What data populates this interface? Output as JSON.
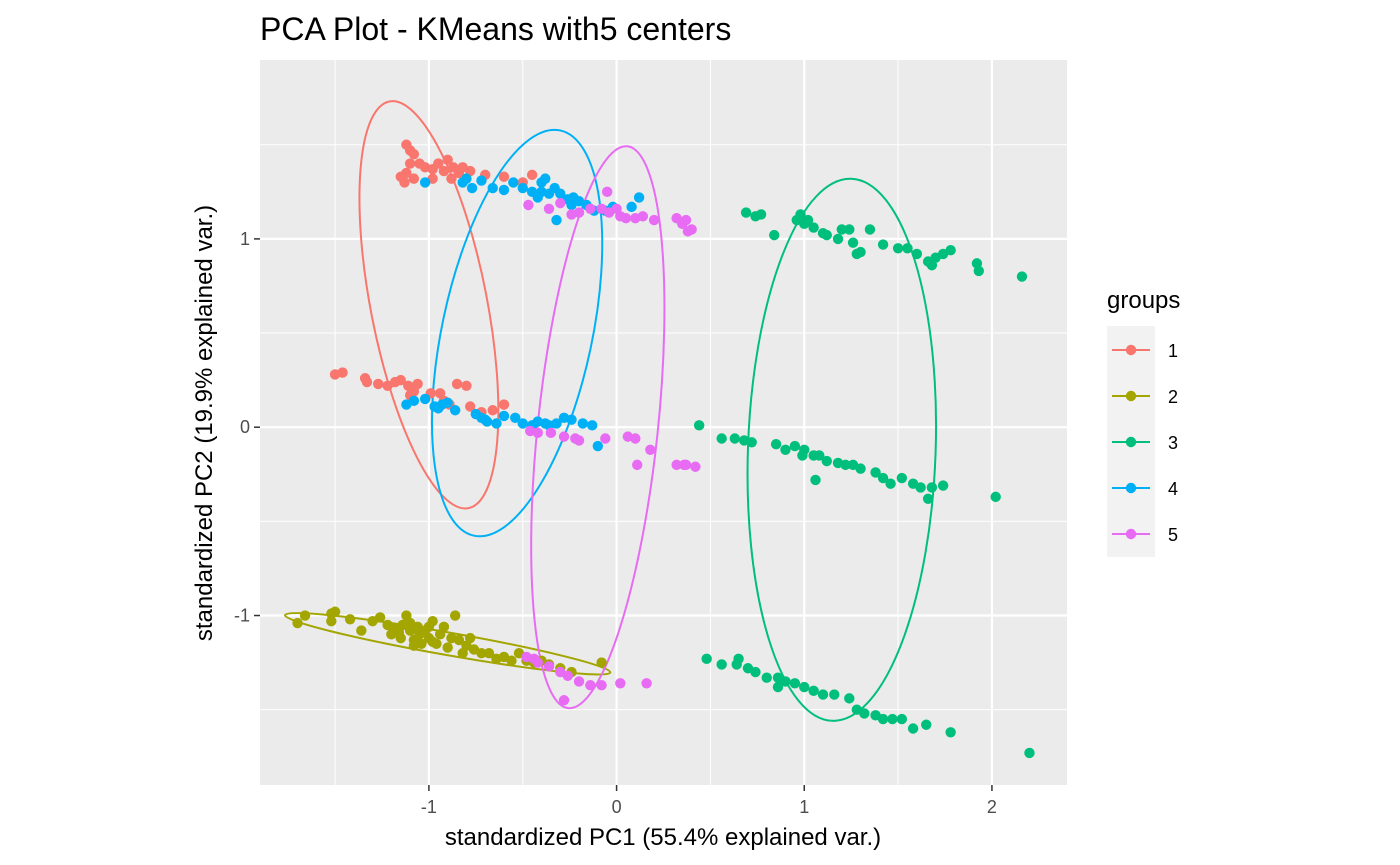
{
  "chart_data": {
    "type": "scatter",
    "title": "PCA Plot - KMeans with5 centers",
    "xlabel": "standardized PC1 (55.4% explained var.)",
    "ylabel": "standardized PC2 (19.9% explained var.)",
    "xlim": [
      -1.9,
      2.4
    ],
    "ylim": [
      -1.9,
      1.95
    ],
    "xticks": [
      -1,
      0,
      1,
      2
    ],
    "xtick_labels": [
      "-1",
      "0",
      "1",
      "2"
    ],
    "yticks": [
      -1,
      0,
      1
    ],
    "ytick_labels": [
      "-1",
      "0",
      "1"
    ],
    "grid": true,
    "legend": {
      "title": "groups",
      "position": "right"
    },
    "series": [
      {
        "name": "1",
        "color": "#F8766D",
        "ellipse": {
          "cx": -1.0,
          "cy": 0.65,
          "rx": 0.31,
          "ry": 1.1,
          "angle": -11
        },
        "points": [
          [
            -1.5,
            0.28
          ],
          [
            -1.46,
            0.29
          ],
          [
            -1.34,
            0.26
          ],
          [
            -1.33,
            0.24
          ],
          [
            -1.27,
            0.23
          ],
          [
            -1.22,
            0.22
          ],
          [
            -1.18,
            0.24
          ],
          [
            -1.15,
            0.25
          ],
          [
            -1.11,
            0.22
          ],
          [
            -1.08,
            0.19
          ],
          [
            -1.06,
            0.23
          ],
          [
            -1.1,
            0.17
          ],
          [
            -0.99,
            0.18
          ],
          [
            -0.92,
            0.14
          ],
          [
            -0.89,
            0.12
          ],
          [
            -0.85,
            0.23
          ],
          [
            -0.8,
            0.22
          ],
          [
            -0.78,
            0.11
          ],
          [
            -0.72,
            0.08
          ],
          [
            -0.66,
            0.09
          ],
          [
            -0.6,
            0.12
          ],
          [
            -0.94,
            0.18
          ],
          [
            -1.15,
            1.33
          ],
          [
            -1.12,
            1.35
          ],
          [
            -1.1,
            1.4
          ],
          [
            -1.08,
            1.45
          ],
          [
            -1.12,
            1.5
          ],
          [
            -1.1,
            1.47
          ],
          [
            -1.05,
            1.4
          ],
          [
            -1.02,
            1.38
          ],
          [
            -0.98,
            1.37
          ],
          [
            -0.95,
            1.4
          ],
          [
            -0.92,
            1.36
          ],
          [
            -0.9,
            1.42
          ],
          [
            -0.87,
            1.38
          ],
          [
            -0.84,
            1.35
          ],
          [
            -0.82,
            1.38
          ],
          [
            -0.78,
            1.36
          ],
          [
            -1.13,
            1.3
          ],
          [
            -1.08,
            1.32
          ],
          [
            -0.98,
            1.32
          ],
          [
            -0.88,
            1.32
          ],
          [
            -0.7,
            1.34
          ],
          [
            -0.6,
            1.33
          ],
          [
            -0.5,
            1.3
          ],
          [
            -0.45,
            1.34
          ]
        ]
      },
      {
        "name": "2",
        "color": "#A3A500",
        "ellipse": {
          "cx": -0.9,
          "cy": -1.15,
          "rx": 0.88,
          "ry": 0.06,
          "angle": 10
        },
        "points": [
          [
            -1.7,
            -1.04
          ],
          [
            -1.66,
            -1.0
          ],
          [
            -1.52,
            -0.99
          ],
          [
            -1.5,
            -0.98
          ],
          [
            -1.52,
            -1.03
          ],
          [
            -1.42,
            -1.02
          ],
          [
            -1.36,
            -1.08
          ],
          [
            -1.3,
            -1.03
          ],
          [
            -1.26,
            -1.01
          ],
          [
            -1.22,
            -1.05
          ],
          [
            -1.2,
            -1.1
          ],
          [
            -1.18,
            -1.07
          ],
          [
            -1.15,
            -1.12
          ],
          [
            -1.14,
            -1.05
          ],
          [
            -1.12,
            -1.0
          ],
          [
            -1.1,
            -1.08
          ],
          [
            -1.08,
            -1.13
          ],
          [
            -1.06,
            -1.06
          ],
          [
            -1.05,
            -1.1
          ],
          [
            -1.04,
            -1.15
          ],
          [
            -1.02,
            -1.08
          ],
          [
            -1.0,
            -1.12
          ],
          [
            -0.98,
            -1.03
          ],
          [
            -0.96,
            -1.15
          ],
          [
            -0.94,
            -1.1
          ],
          [
            -0.92,
            -1.06
          ],
          [
            -0.9,
            -1.17
          ],
          [
            -0.88,
            -1.12
          ],
          [
            -0.86,
            -1.0
          ],
          [
            -0.84,
            -1.13
          ],
          [
            -0.82,
            -1.2
          ],
          [
            -0.8,
            -1.16
          ],
          [
            -0.78,
            -1.12
          ],
          [
            -0.76,
            -1.18
          ],
          [
            -0.72,
            -1.2
          ],
          [
            -0.68,
            -1.2
          ],
          [
            -0.64,
            -1.23
          ],
          [
            -0.6,
            -1.22
          ],
          [
            -0.56,
            -1.24
          ],
          [
            -0.52,
            -1.2
          ],
          [
            -0.48,
            -1.24
          ],
          [
            -0.44,
            -1.25
          ],
          [
            -0.4,
            -1.24
          ],
          [
            -0.36,
            -1.26
          ],
          [
            -0.3,
            -1.28
          ],
          [
            -0.24,
            -1.3
          ],
          [
            -0.08,
            -1.25
          ],
          [
            -1.1,
            -1.04
          ],
          [
            -1.0,
            -1.06
          ],
          [
            -1.16,
            -1.09
          ],
          [
            -0.98,
            -1.14
          ],
          [
            -1.08,
            -1.16
          ]
        ]
      },
      {
        "name": "3",
        "color": "#00BF7D",
        "ellipse": {
          "cx": 1.2,
          "cy": -0.12,
          "rx": 0.5,
          "ry": 1.44,
          "angle": 2
        },
        "points": [
          [
            0.69,
            1.14
          ],
          [
            0.74,
            1.12
          ],
          [
            0.77,
            1.13
          ],
          [
            0.84,
            1.02
          ],
          [
            0.96,
            1.1
          ],
          [
            0.98,
            1.13
          ],
          [
            1.0,
            1.08
          ],
          [
            1.02,
            1.1
          ],
          [
            1.05,
            1.06
          ],
          [
            1.1,
            1.03
          ],
          [
            1.12,
            1.02
          ],
          [
            1.18,
            1.0
          ],
          [
            1.2,
            1.05
          ],
          [
            1.24,
            1.05
          ],
          [
            1.26,
            0.98
          ],
          [
            1.3,
            0.93
          ],
          [
            1.35,
            1.05
          ],
          [
            1.42,
            0.97
          ],
          [
            1.5,
            0.95
          ],
          [
            1.55,
            0.95
          ],
          [
            1.6,
            0.92
          ],
          [
            1.66,
            0.88
          ],
          [
            1.7,
            0.9
          ],
          [
            1.74,
            0.92
          ],
          [
            1.78,
            0.94
          ],
          [
            1.92,
            0.87
          ],
          [
            1.93,
            0.83
          ],
          [
            2.16,
            0.8
          ],
          [
            1.68,
            0.86
          ],
          [
            1.28,
            0.92
          ],
          [
            0.44,
            0.01
          ],
          [
            0.56,
            -0.06
          ],
          [
            0.63,
            -0.06
          ],
          [
            0.68,
            -0.07
          ],
          [
            0.72,
            -0.08
          ],
          [
            0.85,
            -0.09
          ],
          [
            0.9,
            -0.12
          ],
          [
            0.95,
            -0.1
          ],
          [
            1.0,
            -0.12
          ],
          [
            1.05,
            -0.15
          ],
          [
            1.08,
            -0.15
          ],
          [
            1.12,
            -0.18
          ],
          [
            1.18,
            -0.19
          ],
          [
            1.22,
            -0.2
          ],
          [
            1.26,
            -0.2
          ],
          [
            1.3,
            -0.22
          ],
          [
            1.38,
            -0.24
          ],
          [
            1.42,
            -0.27
          ],
          [
            1.46,
            -0.3
          ],
          [
            1.52,
            -0.27
          ],
          [
            1.58,
            -0.3
          ],
          [
            1.62,
            -0.32
          ],
          [
            1.68,
            -0.32
          ],
          [
            1.74,
            -0.31
          ],
          [
            1.66,
            -0.38
          ],
          [
            2.02,
            -0.37
          ],
          [
            1.06,
            -0.28
          ],
          [
            0.99,
            -0.15
          ],
          [
            0.48,
            -1.23
          ],
          [
            0.56,
            -1.26
          ],
          [
            0.64,
            -1.26
          ],
          [
            0.7,
            -1.28
          ],
          [
            0.74,
            -1.3
          ],
          [
            0.8,
            -1.33
          ],
          [
            0.86,
            -1.33
          ],
          [
            0.9,
            -1.35
          ],
          [
            0.95,
            -1.36
          ],
          [
            1.0,
            -1.38
          ],
          [
            1.05,
            -1.4
          ],
          [
            1.1,
            -1.42
          ],
          [
            1.16,
            -1.42
          ],
          [
            1.24,
            -1.44
          ],
          [
            1.28,
            -1.5
          ],
          [
            1.32,
            -1.52
          ],
          [
            1.38,
            -1.53
          ],
          [
            1.42,
            -1.55
          ],
          [
            1.47,
            -1.55
          ],
          [
            1.52,
            -1.55
          ],
          [
            1.58,
            -1.6
          ],
          [
            1.65,
            -1.58
          ],
          [
            1.78,
            -1.62
          ],
          [
            2.2,
            -1.73
          ],
          [
            0.86,
            -1.38
          ],
          [
            0.65,
            -1.23
          ]
        ]
      },
      {
        "name": "4",
        "color": "#00B0F6",
        "ellipse": {
          "cx": -0.53,
          "cy": 0.5,
          "rx": 0.4,
          "ry": 1.1,
          "angle": 12
        },
        "points": [
          [
            -1.12,
            0.12
          ],
          [
            -1.08,
            0.14
          ],
          [
            -1.02,
            0.15
          ],
          [
            -0.97,
            0.11
          ],
          [
            -0.95,
            0.1
          ],
          [
            -0.93,
            0.12
          ],
          [
            -0.9,
            0.13
          ],
          [
            -0.86,
            0.09
          ],
          [
            -0.75,
            0.07
          ],
          [
            -0.72,
            0.05
          ],
          [
            -0.69,
            0.03
          ],
          [
            -0.64,
            0.02
          ],
          [
            -0.6,
            0.06
          ],
          [
            -0.54,
            0.05
          ],
          [
            -0.5,
            0.02
          ],
          [
            -0.45,
            0.01
          ],
          [
            -0.42,
            0.03
          ],
          [
            -0.36,
            0.01
          ],
          [
            -0.32,
            0.02
          ],
          [
            -0.28,
            0.05
          ],
          [
            -0.24,
            0.04
          ],
          [
            -0.18,
            0.02
          ],
          [
            -0.13,
            0.01
          ],
          [
            -0.1,
            -0.1
          ],
          [
            -0.38,
            0.02
          ],
          [
            -0.7,
            0.04
          ],
          [
            -1.02,
            1.3
          ],
          [
            -0.82,
            1.3
          ],
          [
            -0.8,
            1.32
          ],
          [
            -0.77,
            1.27
          ],
          [
            -0.72,
            1.31
          ],
          [
            -0.66,
            1.27
          ],
          [
            -0.6,
            1.26
          ],
          [
            -0.55,
            1.3
          ],
          [
            -0.5,
            1.27
          ],
          [
            -0.45,
            1.25
          ],
          [
            -0.42,
            1.22
          ],
          [
            -0.4,
            1.3
          ],
          [
            -0.38,
            1.32
          ],
          [
            -0.36,
            1.24
          ],
          [
            -0.33,
            1.27
          ],
          [
            -0.3,
            1.24
          ],
          [
            -0.26,
            1.21
          ],
          [
            -0.23,
            1.22
          ],
          [
            -0.2,
            1.2
          ],
          [
            -0.16,
            1.18
          ],
          [
            -0.12,
            1.15
          ],
          [
            -0.06,
            1.15
          ],
          [
            -0.02,
            1.17
          ],
          [
            0.08,
            1.17
          ],
          [
            0.12,
            1.22
          ],
          [
            -0.32,
            1.1
          ],
          [
            -0.24,
            1.18
          ],
          [
            -0.4,
            1.25
          ]
        ]
      },
      {
        "name": "5",
        "color": "#E76BF3",
        "ellipse": {
          "cx": -0.1,
          "cy": 0.0,
          "rx": 0.32,
          "ry": 1.5,
          "angle": 6
        },
        "points": [
          [
            -0.46,
            -0.02
          ],
          [
            -0.42,
            -0.03
          ],
          [
            -0.35,
            -0.03
          ],
          [
            -0.28,
            -0.05
          ],
          [
            -0.22,
            -0.06
          ],
          [
            -0.2,
            -0.07
          ],
          [
            -0.06,
            -0.06
          ],
          [
            0.06,
            -0.05
          ],
          [
            0.1,
            -0.06
          ],
          [
            0.11,
            -0.2
          ],
          [
            0.18,
            -0.12
          ],
          [
            0.32,
            -0.2
          ],
          [
            0.36,
            -0.2
          ],
          [
            0.42,
            -0.21
          ],
          [
            0.37,
            -0.2
          ],
          [
            -0.47,
            1.18
          ],
          [
            -0.36,
            1.16
          ],
          [
            -0.3,
            1.19
          ],
          [
            -0.24,
            1.13
          ],
          [
            -0.2,
            1.14
          ],
          [
            -0.14,
            1.16
          ],
          [
            -0.08,
            1.16
          ],
          [
            -0.04,
            1.14
          ],
          [
            0.02,
            1.12
          ],
          [
            0.05,
            1.11
          ],
          [
            0.1,
            1.11
          ],
          [
            0.2,
            1.1
          ],
          [
            0.32,
            1.11
          ],
          [
            0.35,
            1.08
          ],
          [
            0.37,
            1.1
          ],
          [
            0.38,
            1.04
          ],
          [
            0.4,
            1.05
          ],
          [
            -0.05,
            1.25
          ],
          [
            0.0,
            1.16
          ],
          [
            0.14,
            1.12
          ],
          [
            -0.48,
            -1.22
          ],
          [
            -0.44,
            -1.23
          ],
          [
            -0.42,
            -1.25
          ],
          [
            -0.36,
            -1.27
          ],
          [
            -0.3,
            -1.3
          ],
          [
            -0.26,
            -1.32
          ],
          [
            -0.2,
            -1.35
          ],
          [
            -0.14,
            -1.37
          ],
          [
            -0.08,
            -1.37
          ],
          [
            0.02,
            -1.36
          ],
          [
            0.16,
            -1.36
          ],
          [
            -0.28,
            -1.45
          ]
        ]
      }
    ]
  }
}
